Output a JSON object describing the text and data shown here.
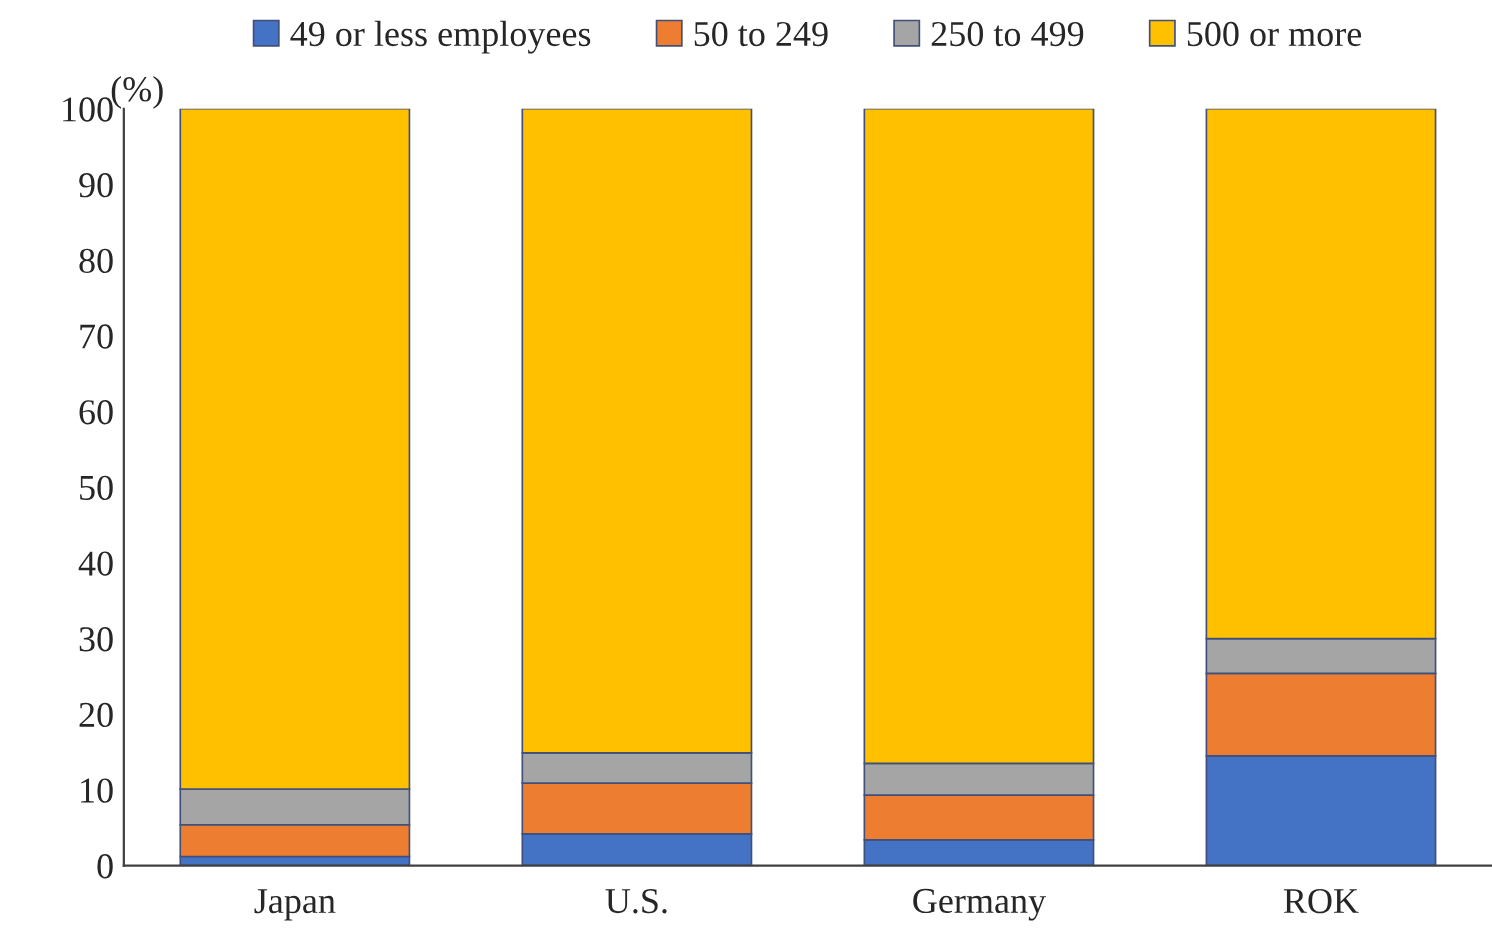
{
  "chart_data": {
    "type": "bar",
    "stacked": true,
    "ylabel": "(%)",
    "categories": [
      "Japan",
      "U.S.",
      "Germany",
      "ROK"
    ],
    "series": [
      {
        "name": "49 or less employees",
        "color": "#4472c4",
        "values": [
          1.2,
          4.2,
          3.4,
          14.5
        ]
      },
      {
        "name": "50 to 249",
        "color": "#ed7d31",
        "values": [
          4.2,
          6.7,
          5.9,
          10.9
        ]
      },
      {
        "name": "250 to 499",
        "color": "#a5a5a5",
        "values": [
          4.7,
          4.0,
          4.2,
          4.6
        ]
      },
      {
        "name": "500 or more",
        "color": "#ffc000",
        "values": [
          89.9,
          85.1,
          86.5,
          70.0
        ]
      }
    ],
    "ylim": [
      0,
      100
    ],
    "yticks": [
      0,
      10,
      20,
      30,
      40,
      50,
      60,
      70,
      80,
      90,
      100
    ],
    "grid": false,
    "legend": "top"
  }
}
